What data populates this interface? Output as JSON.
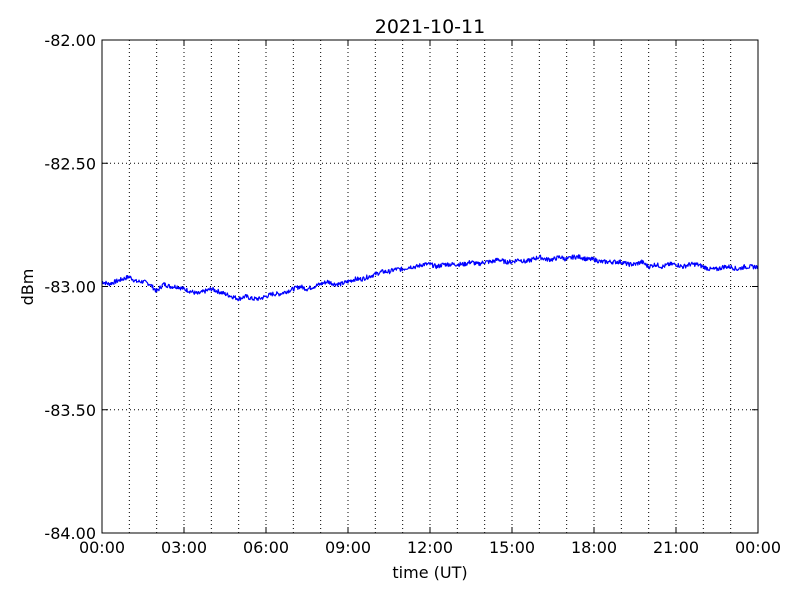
{
  "chart_data": {
    "type": "line",
    "title": "2021-10-11",
    "xlabel": "time (UT)",
    "ylabel": "dBm",
    "x_unit": "hours UT",
    "xlim": [
      0,
      24
    ],
    "ylim": [
      -84.0,
      -82.0
    ],
    "x_tick_values": [
      0,
      3,
      6,
      9,
      12,
      15,
      18,
      21,
      24
    ],
    "x_tick_labels": [
      "00:00",
      "03:00",
      "06:00",
      "09:00",
      "12:00",
      "15:00",
      "18:00",
      "21:00",
      "00:00"
    ],
    "y_tick_values": [
      -82.0,
      -82.5,
      -83.0,
      -83.5,
      -84.0
    ],
    "y_tick_labels": [
      "-82.00",
      "-82.50",
      "-83.00",
      "-83.50",
      "-84.00"
    ],
    "grid": {
      "x_every_hours": 1,
      "y_at_ticks": true,
      "style": "dotted"
    },
    "line_color": "#0000ff",
    "series": [
      {
        "x": [
          0.0,
          0.25,
          0.5,
          0.75,
          1.0,
          1.25,
          1.5,
          1.75,
          2.0,
          2.25,
          2.5,
          2.75,
          3.0,
          3.25,
          3.5,
          3.75,
          4.0,
          4.25,
          4.5,
          4.75,
          5.0,
          5.25,
          5.5,
          5.75,
          6.0,
          6.25,
          6.5,
          6.75,
          7.0,
          7.25,
          7.5,
          7.75,
          8.0,
          8.25,
          8.5,
          8.75,
          9.0,
          9.25,
          9.5,
          9.75,
          10.0,
          10.25,
          10.5,
          10.75,
          11.0,
          11.25,
          11.5,
          11.75,
          12.0,
          12.25,
          12.5,
          12.75,
          13.0,
          13.25,
          13.5,
          13.75,
          14.0,
          14.25,
          14.5,
          14.75,
          15.0,
          15.25,
          15.5,
          15.75,
          16.0,
          16.25,
          16.5,
          16.75,
          17.0,
          17.25,
          17.5,
          17.75,
          18.0,
          18.25,
          18.5,
          18.75,
          19.0,
          19.25,
          19.5,
          19.75,
          20.0,
          20.25,
          20.5,
          20.75,
          21.0,
          21.25,
          21.5,
          21.75,
          22.0,
          22.25,
          22.5,
          22.75,
          23.0,
          23.25,
          23.5,
          23.75,
          24.0
        ],
        "values": [
          -82.98,
          -82.99,
          -82.98,
          -82.97,
          -82.96,
          -82.98,
          -82.98,
          -82.99,
          -83.02,
          -82.99,
          -83.0,
          -83.0,
          -83.01,
          -83.02,
          -83.03,
          -83.02,
          -83.01,
          -83.02,
          -83.03,
          -83.04,
          -83.05,
          -83.04,
          -83.05,
          -83.05,
          -83.04,
          -83.03,
          -83.03,
          -83.02,
          -83.01,
          -83.0,
          -83.01,
          -83.0,
          -82.99,
          -82.98,
          -82.99,
          -82.99,
          -82.98,
          -82.97,
          -82.97,
          -82.96,
          -82.95,
          -82.94,
          -82.94,
          -82.93,
          -82.93,
          -82.92,
          -82.92,
          -82.91,
          -82.91,
          -82.92,
          -82.91,
          -82.91,
          -82.91,
          -82.91,
          -82.9,
          -82.91,
          -82.9,
          -82.9,
          -82.89,
          -82.9,
          -82.9,
          -82.89,
          -82.9,
          -82.89,
          -82.88,
          -82.89,
          -82.89,
          -82.88,
          -82.89,
          -82.88,
          -82.88,
          -82.89,
          -82.89,
          -82.9,
          -82.9,
          -82.9,
          -82.9,
          -82.91,
          -82.91,
          -82.9,
          -82.92,
          -82.91,
          -82.92,
          -82.91,
          -82.91,
          -82.92,
          -82.91,
          -82.91,
          -82.92,
          -82.93,
          -82.93,
          -82.92,
          -82.92,
          -82.93,
          -82.92,
          -82.92,
          -82.92
        ]
      }
    ]
  }
}
